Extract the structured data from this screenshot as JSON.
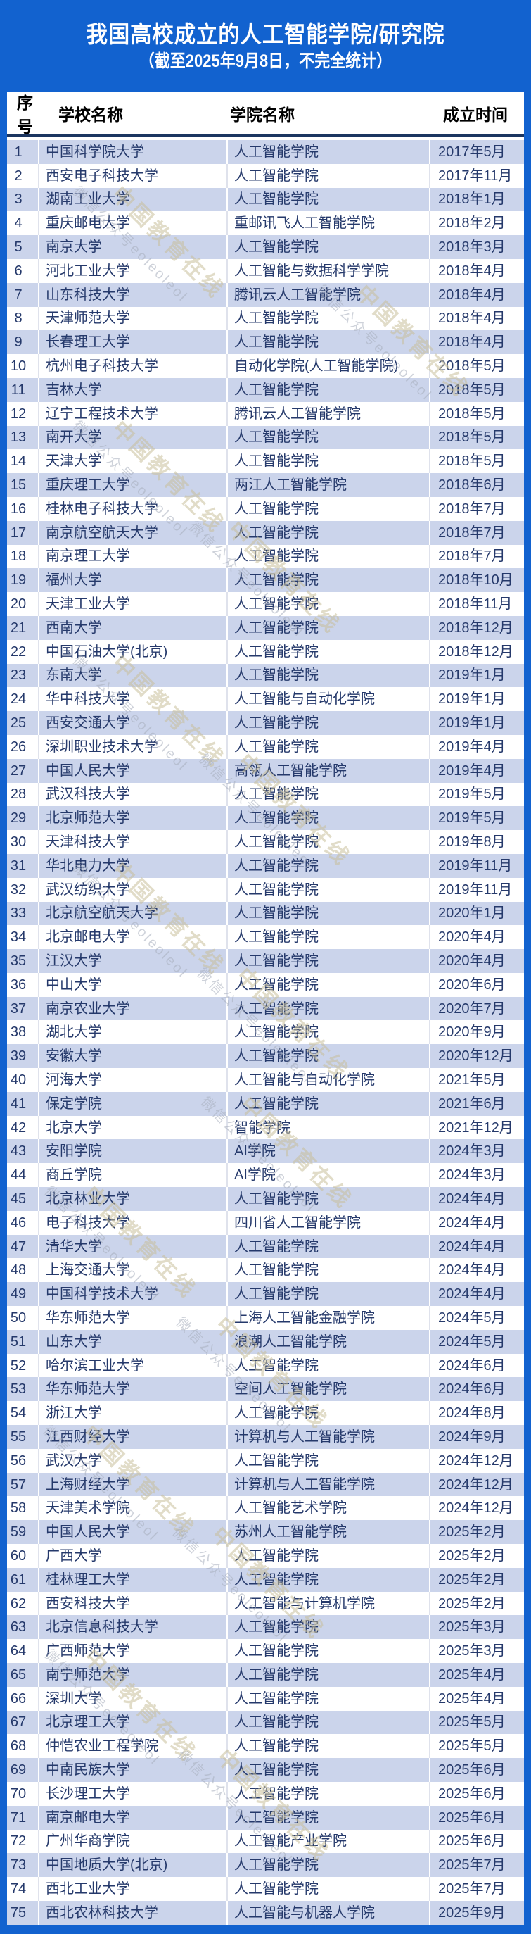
{
  "header": {
    "title": "我国高校成立的人工智能学院/研究院",
    "subtitle": "（截至2025年9月8日，不完全统计）"
  },
  "table": {
    "columns": [
      "序号",
      "学校名称",
      "学院名称",
      "成立时间"
    ],
    "rows": [
      {
        "no": "1",
        "school": "中国科学院大学",
        "college": "人工智能学院",
        "date": "2017年5月"
      },
      {
        "no": "2",
        "school": "西安电子科技大学",
        "college": "人工智能学院",
        "date": "2017年11月"
      },
      {
        "no": "3",
        "school": "湖南工业大学",
        "college": "人工智能学院",
        "date": "2018年1月"
      },
      {
        "no": "4",
        "school": "重庆邮电大学",
        "college": "重邮讯飞人工智能学院",
        "date": "2018年2月"
      },
      {
        "no": "5",
        "school": "南京大学",
        "college": "人工智能学院",
        "date": "2018年3月"
      },
      {
        "no": "6",
        "school": "河北工业大学",
        "college": "人工智能与数据科学学院",
        "date": "2018年4月"
      },
      {
        "no": "7",
        "school": "山东科技大学",
        "college": "腾讯云人工智能学院",
        "date": "2018年4月"
      },
      {
        "no": "8",
        "school": "天津师范大学",
        "college": "人工智能学院",
        "date": "2018年4月"
      },
      {
        "no": "9",
        "school": "长春理工大学",
        "college": "人工智能学院",
        "date": "2018年4月"
      },
      {
        "no": "10",
        "school": "杭州电子科技大学",
        "college": "自动化学院(人工智能学院)",
        "date": "2018年5月"
      },
      {
        "no": "11",
        "school": "吉林大学",
        "college": "人工智能学院",
        "date": "2018年5月"
      },
      {
        "no": "12",
        "school": "辽宁工程技术大学",
        "college": "腾讯云人工智能学院",
        "date": "2018年5月"
      },
      {
        "no": "13",
        "school": "南开大学",
        "college": "人工智能学院",
        "date": "2018年5月"
      },
      {
        "no": "14",
        "school": "天津大学",
        "college": "人工智能学院",
        "date": "2018年5月"
      },
      {
        "no": "15",
        "school": "重庆理工大学",
        "college": "两江人工智能学院",
        "date": "2018年6月"
      },
      {
        "no": "16",
        "school": "桂林电子科技大学",
        "college": "人工智能学院",
        "date": "2018年7月"
      },
      {
        "no": "17",
        "school": "南京航空航天大学",
        "college": "人工智能学院",
        "date": "2018年7月"
      },
      {
        "no": "18",
        "school": "南京理工大学",
        "college": "人工智能学院",
        "date": "2018年7月"
      },
      {
        "no": "19",
        "school": "福州大学",
        "college": "人工智能学院",
        "date": "2018年10月"
      },
      {
        "no": "20",
        "school": "天津工业大学",
        "college": "人工智能学院",
        "date": "2018年11月"
      },
      {
        "no": "21",
        "school": "西南大学",
        "college": "人工智能学院",
        "date": "2018年12月"
      },
      {
        "no": "22",
        "school": "中国石油大学(北京)",
        "college": "人工智能学院",
        "date": "2018年12月"
      },
      {
        "no": "23",
        "school": "东南大学",
        "college": "人工智能学院",
        "date": "2019年1月"
      },
      {
        "no": "24",
        "school": "华中科技大学",
        "college": "人工智能与自动化学院",
        "date": "2019年1月"
      },
      {
        "no": "25",
        "school": "西安交通大学",
        "college": "人工智能学院",
        "date": "2019年1月"
      },
      {
        "no": "26",
        "school": "深圳职业技术大学",
        "college": "人工智能学院",
        "date": "2019年4月"
      },
      {
        "no": "27",
        "school": "中国人民大学",
        "college": "高瓴人工智能学院",
        "date": "2019年4月"
      },
      {
        "no": "28",
        "school": "武汉科技大学",
        "college": "人工智能学院",
        "date": "2019年5月"
      },
      {
        "no": "29",
        "school": "北京师范大学",
        "college": "人工智能学院",
        "date": "2019年5月"
      },
      {
        "no": "30",
        "school": "天津科技大学",
        "college": "人工智能学院",
        "date": "2019年8月"
      },
      {
        "no": "31",
        "school": "华北电力大学",
        "college": "人工智能学院",
        "date": "2019年11月"
      },
      {
        "no": "32",
        "school": "武汉纺织大学",
        "college": "人工智能学院",
        "date": "2019年11月"
      },
      {
        "no": "33",
        "school": "北京航空航天大学",
        "college": "人工智能学院",
        "date": "2020年1月"
      },
      {
        "no": "34",
        "school": "北京邮电大学",
        "college": "人工智能学院",
        "date": "2020年4月"
      },
      {
        "no": "35",
        "school": "江汉大学",
        "college": "人工智能学院",
        "date": "2020年4月"
      },
      {
        "no": "36",
        "school": "中山大学",
        "college": "人工智能学院",
        "date": "2020年6月"
      },
      {
        "no": "37",
        "school": "南京农业大学",
        "college": "人工智能学院",
        "date": "2020年7月"
      },
      {
        "no": "38",
        "school": "湖北大学",
        "college": "人工智能学院",
        "date": "2020年9月"
      },
      {
        "no": "39",
        "school": "安徽大学",
        "college": "人工智能学院",
        "date": "2020年12月"
      },
      {
        "no": "40",
        "school": "河海大学",
        "college": "人工智能与自动化学院",
        "date": "2021年5月"
      },
      {
        "no": "41",
        "school": "保定学院",
        "college": "人工智能学院",
        "date": "2021年6月"
      },
      {
        "no": "42",
        "school": "北京大学",
        "college": "智能学院",
        "date": "2021年12月"
      },
      {
        "no": "43",
        "school": "安阳学院",
        "college": "AI学院",
        "date": "2024年3月"
      },
      {
        "no": "44",
        "school": "商丘学院",
        "college": "AI学院",
        "date": "2024年3月"
      },
      {
        "no": "45",
        "school": "北京林业大学",
        "college": "人工智能学院",
        "date": "2024年4月"
      },
      {
        "no": "46",
        "school": "电子科技大学",
        "college": "四川省人工智能学院",
        "date": "2024年4月"
      },
      {
        "no": "47",
        "school": "清华大学",
        "college": "人工智能学院",
        "date": "2024年4月"
      },
      {
        "no": "48",
        "school": "上海交通大学",
        "college": "人工智能学院",
        "date": "2024年4月"
      },
      {
        "no": "49",
        "school": "中国科学技术大学",
        "college": "人工智能学院",
        "date": "2024年4月"
      },
      {
        "no": "50",
        "school": "华东师范大学",
        "college": "上海人工智能金融学院",
        "date": "2024年5月"
      },
      {
        "no": "51",
        "school": "山东大学",
        "college": "浪潮人工智能学院",
        "date": "2024年5月"
      },
      {
        "no": "52",
        "school": "哈尔滨工业大学",
        "college": "人工智能学院",
        "date": "2024年6月"
      },
      {
        "no": "53",
        "school": "华东师范大学",
        "college": "空间人工智能学院",
        "date": "2024年6月"
      },
      {
        "no": "54",
        "school": "浙江大学",
        "college": "人工智能学院",
        "date": "2024年8月"
      },
      {
        "no": "55",
        "school": "江西财经大学",
        "college": "计算机与人工智能学院",
        "date": "2024年9月"
      },
      {
        "no": "56",
        "school": "武汉大学",
        "college": "人工智能学院",
        "date": "2024年12月"
      },
      {
        "no": "57",
        "school": "上海财经大学",
        "college": "计算机与人工智能学院",
        "date": "2024年12月"
      },
      {
        "no": "58",
        "school": "天津美术学院",
        "college": "人工智能艺术学院",
        "date": "2024年12月"
      },
      {
        "no": "59",
        "school": "中国人民大学",
        "college": "苏州人工智能学院",
        "date": "2025年2月"
      },
      {
        "no": "60",
        "school": "广西大学",
        "college": "人工智能学院",
        "date": "2025年2月"
      },
      {
        "no": "61",
        "school": "桂林理工大学",
        "college": "人工智能学院",
        "date": "2025年2月"
      },
      {
        "no": "62",
        "school": "西安科技大学",
        "college": "人工智能与计算机学院",
        "date": "2025年2月"
      },
      {
        "no": "63",
        "school": "北京信息科技大学",
        "college": "人工智能学院",
        "date": "2025年3月"
      },
      {
        "no": "64",
        "school": "广西师范大学",
        "college": "人工智能学院",
        "date": "2025年3月"
      },
      {
        "no": "65",
        "school": "南宁师范大学",
        "college": "人工智能学院",
        "date": "2025年4月"
      },
      {
        "no": "66",
        "school": "深圳大学",
        "college": "人工智能学院",
        "date": "2025年4月"
      },
      {
        "no": "67",
        "school": "北京理工大学",
        "college": "人工智能学院",
        "date": "2025年5月"
      },
      {
        "no": "68",
        "school": "仲恺农业工程学院",
        "college": "人工智能学院",
        "date": "2025年5月"
      },
      {
        "no": "69",
        "school": "中南民族大学",
        "college": "人工智能学院",
        "date": "2025年6月"
      },
      {
        "no": "70",
        "school": "长沙理工大学",
        "college": "人工智能学院",
        "date": "2025年6月"
      },
      {
        "no": "71",
        "school": "南京邮电大学",
        "college": "人工智能学院",
        "date": "2025年6月"
      },
      {
        "no": "72",
        "school": "广州华商学院",
        "college": "人工智能产业学院",
        "date": "2025年6月"
      },
      {
        "no": "73",
        "school": "中国地质大学(北京)",
        "college": "人工智能学院",
        "date": "2025年7月"
      },
      {
        "no": "74",
        "school": "西北工业大学",
        "college": "人工智能学院",
        "date": "2025年7月"
      },
      {
        "no": "75",
        "school": "西北农林科技大学",
        "college": "人工智能与机器人学院",
        "date": "2025年9月"
      }
    ]
  },
  "watermark": {
    "line1": "中国教育在线",
    "line2": "微信公众号eoleoleol"
  },
  "colors": {
    "background_blue": "#1262cf",
    "row_alt": "#cbd4eb",
    "row_text": "#25396b",
    "header_text": "#ffffff",
    "thead_text": "#000000",
    "divider": "#1b3560"
  }
}
